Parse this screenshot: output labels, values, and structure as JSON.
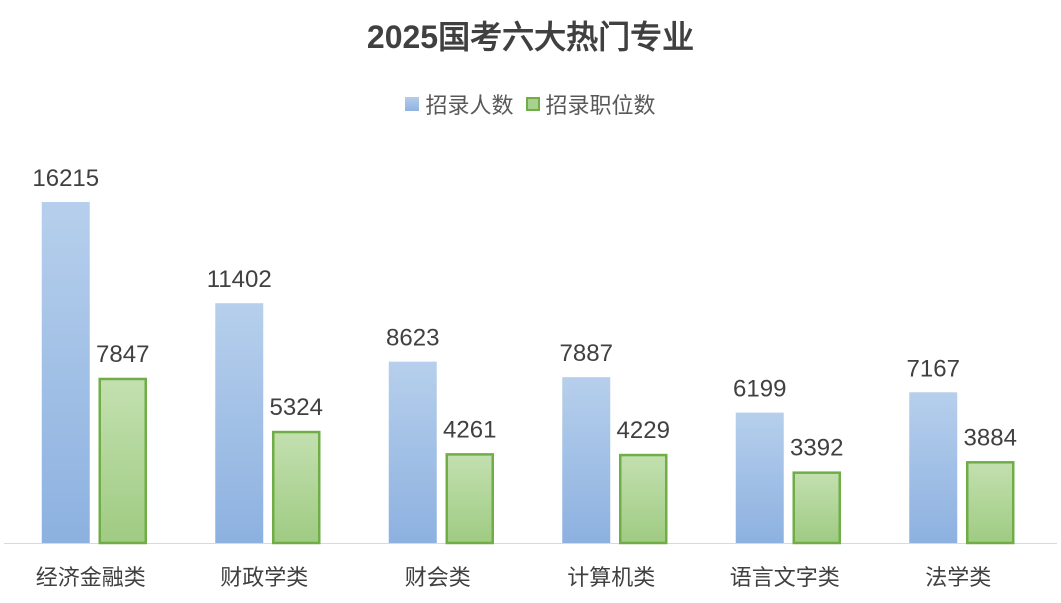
{
  "chart_data": {
    "type": "bar",
    "title": "2025国考六大热门专业",
    "categories": [
      "经济金融类",
      "财政学类",
      "财会类",
      "计算机类",
      "语言文字类",
      "法学类"
    ],
    "series": [
      {
        "name": "招录人数",
        "values": [
          16215,
          11402,
          8623,
          7887,
          6199,
          7167
        ],
        "color": "#9dbde6"
      },
      {
        "name": "招录职位数",
        "values": [
          7847,
          5324,
          4261,
          4229,
          3392,
          3884
        ],
        "color": "#a9d18e",
        "border": "#70ad47"
      }
    ],
    "xlabel": "",
    "ylabel": "",
    "ylim": [
      0,
      16215
    ],
    "grid": false,
    "legend": "top"
  }
}
